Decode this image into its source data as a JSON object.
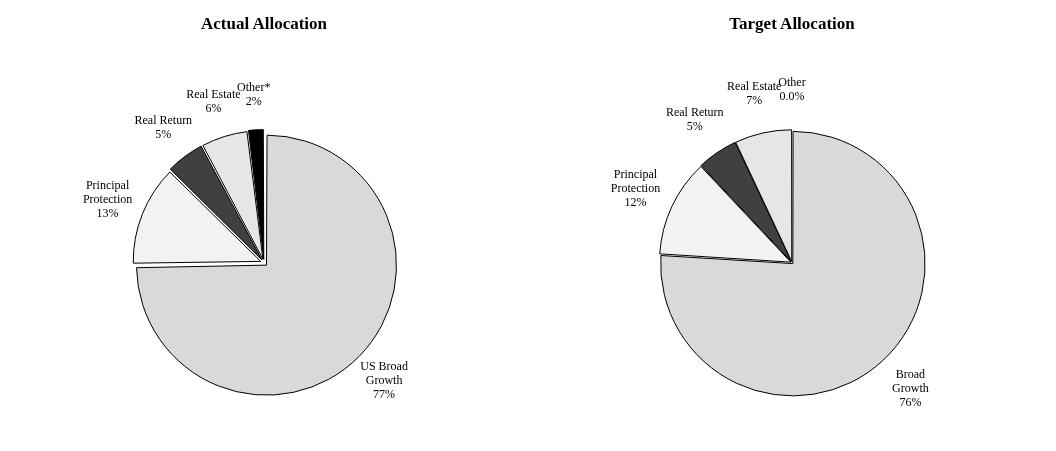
{
  "chart_data": [
    {
      "type": "pie",
      "title": "Actual Allocation",
      "categories": [
        "US Broad Growth",
        "Principal Protection",
        "Real Return",
        "Real Estate",
        "Other*"
      ],
      "values": [
        77,
        13,
        5,
        6,
        2
      ],
      "value_labels": [
        "77%",
        "13%",
        "5%",
        "6%",
        "2%"
      ],
      "colors": [
        "#d9d9d9",
        "#f2f2f2",
        "#404040",
        "#e6e6e6",
        "#000000"
      ],
      "legend": false
    },
    {
      "type": "pie",
      "title": "Target Allocation",
      "categories": [
        "Broad Growth",
        "Principal Protection",
        "Real Return",
        "Real Estate",
        "Other"
      ],
      "values": [
        76,
        12,
        5,
        7,
        0
      ],
      "value_labels": [
        "76%",
        "12%",
        "5%",
        "7%",
        "0.0%"
      ],
      "colors": [
        "#d9d9d9",
        "#f2f2f2",
        "#404040",
        "#e6e6e6",
        "#000000"
      ],
      "legend": false
    }
  ]
}
